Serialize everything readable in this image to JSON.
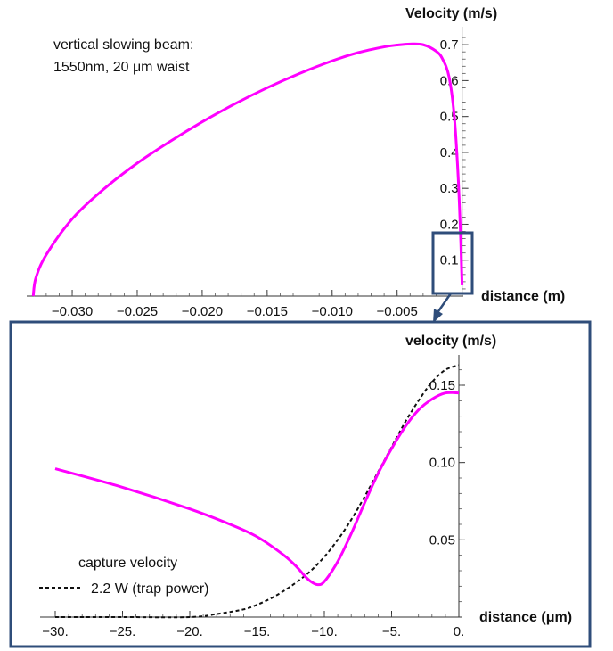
{
  "colors": {
    "slowing": "#ff00ff",
    "capture": "#111111",
    "frame": "#2f4d7a"
  },
  "top_panel": {
    "annotation_line1": "vertical slowing beam:",
    "annotation_line2": "1550nm, 20 μm waist"
  },
  "bottom_panel": {
    "legend_title": "capture velocity",
    "legend_entry": "2.2  W (trap power)"
  },
  "chart_data": [
    {
      "type": "line",
      "xlabel": "distance (m)",
      "ylabel": "Velocity (m/s)",
      "xlim": [
        -0.0335,
        0.0003
      ],
      "ylim": [
        0,
        0.75
      ],
      "x_ticks": [
        -0.03,
        -0.025,
        -0.02,
        -0.015,
        -0.01,
        -0.005
      ],
      "x_tick_labels": [
        "-0.030",
        "-0.025",
        "-0.020",
        "-0.015",
        "-0.010",
        "-0.005"
      ],
      "y_ticks": [
        0.1,
        0.2,
        0.3,
        0.4,
        0.5,
        0.6,
        0.7
      ],
      "y_tick_labels": [
        "0.1",
        "0.2",
        "0.3",
        "0.4",
        "0.5",
        "0.6",
        "0.7"
      ],
      "series": [
        {
          "color": "#ff00ff",
          "x": [
            -0.033,
            -0.0328,
            -0.032,
            -0.03,
            -0.0275,
            -0.025,
            -0.0225,
            -0.02,
            -0.0175,
            -0.015,
            -0.0125,
            -0.01,
            -0.008,
            -0.006,
            -0.005,
            -0.004,
            -0.003,
            -0.002,
            -0.0015,
            -0.001,
            -0.0006,
            -0.0003,
            -0.0001,
            0.0
          ],
          "y": [
            0.0,
            0.05,
            0.115,
            0.215,
            0.3,
            0.37,
            0.43,
            0.485,
            0.535,
            0.58,
            0.62,
            0.655,
            0.678,
            0.694,
            0.699,
            0.702,
            0.7,
            0.682,
            0.66,
            0.61,
            0.5,
            0.33,
            0.15,
            0.03
          ]
        }
      ]
    },
    {
      "type": "line",
      "xlabel": "distance (μm)",
      "ylabel": "velocity (m/s)",
      "xlim": [
        -30.5,
        0.2
      ],
      "ylim": [
        0,
        0.17
      ],
      "x_ticks": [
        -30,
        -25,
        -20,
        -15,
        -10,
        -5,
        0
      ],
      "x_tick_labels": [
        "-30.",
        "-25.",
        "-20.",
        "-15.",
        "-10.",
        "-5.",
        "0."
      ],
      "y_ticks": [
        0.05,
        0.1,
        0.15
      ],
      "y_tick_labels": [
        "0.05",
        "0.10",
        "0.15"
      ],
      "series": [
        {
          "color": "#ff00ff",
          "x": [
            -30.0,
            -25.0,
            -20.0,
            -17.0,
            -15.0,
            -13.0,
            -12.0,
            -11.5,
            -11.0,
            -10.5,
            -10.0,
            -9.0,
            -8.0,
            -7.0,
            -6.0,
            -5.0,
            -4.0,
            -3.0,
            -2.0,
            -1.0,
            0.0
          ],
          "y": [
            0.096,
            0.084,
            0.07,
            0.06,
            0.052,
            0.04,
            0.032,
            0.027,
            0.023,
            0.021,
            0.023,
            0.036,
            0.054,
            0.074,
            0.093,
            0.109,
            0.123,
            0.134,
            0.141,
            0.145,
            0.145
          ]
        },
        {
          "color": "#111111",
          "dash": true,
          "x": [
            -30.0,
            -25.0,
            -20.0,
            -18.0,
            -16.0,
            -15.0,
            -14.0,
            -13.0,
            -12.0,
            -11.0,
            -10.0,
            -9.0,
            -8.0,
            -7.0,
            -6.0,
            -5.0,
            -4.0,
            -3.0,
            -2.0,
            -1.0,
            0.0
          ],
          "y": [
            0.0,
            0.0,
            0.0,
            0.002,
            0.005,
            0.008,
            0.012,
            0.017,
            0.023,
            0.03,
            0.039,
            0.05,
            0.063,
            0.078,
            0.094,
            0.11,
            0.126,
            0.14,
            0.152,
            0.16,
            0.163
          ]
        }
      ]
    }
  ]
}
